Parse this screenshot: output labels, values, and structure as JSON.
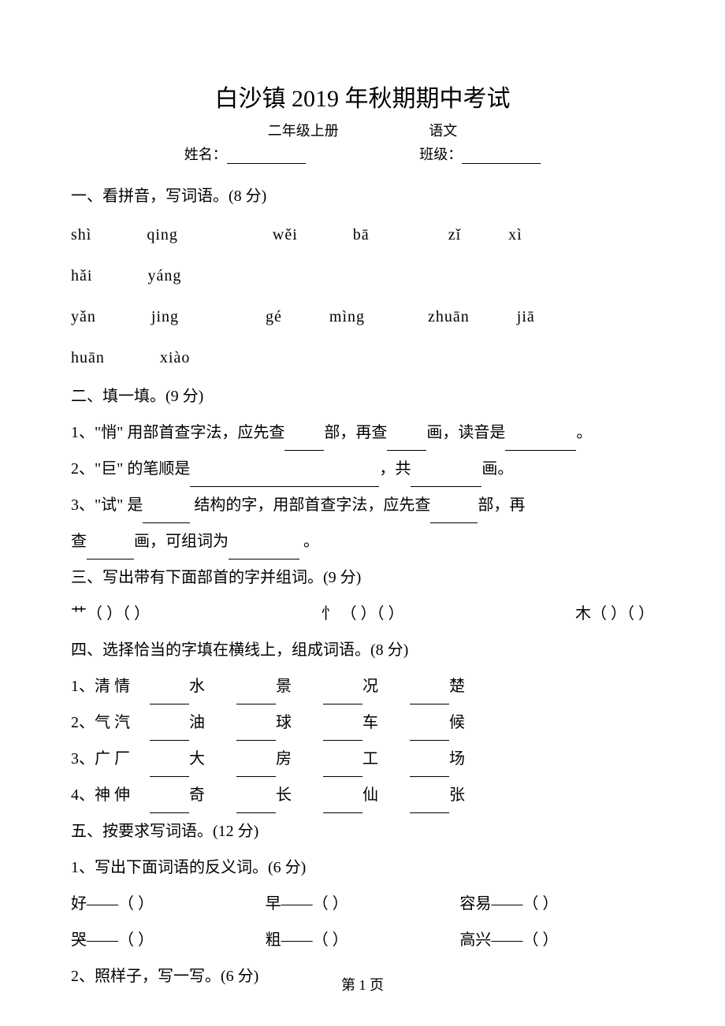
{
  "title": "白沙镇 2019 年秋期期中考试",
  "grade": "二年级上册",
  "subject": "语文",
  "name_label": "姓名：",
  "class_label": "班级：",
  "section1": {
    "heading": "一、看拼音，写词语。(8 分)",
    "row1": [
      {
        "text": "shì",
        "w": 70
      },
      {
        "text": "qing",
        "w": 120
      },
      {
        "text": "wěi",
        "w": 70
      },
      {
        "text": "bā",
        "w": 100
      },
      {
        "text": "zǐ",
        "w": 60
      },
      {
        "text": "xì",
        "w": 130
      },
      {
        "text": "hǎi",
        "w": 70
      },
      {
        "text": "yáng",
        "w": 0
      }
    ],
    "row2": [
      {
        "text": "yǎn",
        "w": 70
      },
      {
        "text": "jing",
        "w": 110
      },
      {
        "text": "gé",
        "w": 60
      },
      {
        "text": "mìng",
        "w": 80
      },
      {
        "text": "zhuān",
        "w": 60
      },
      {
        "text": "jiā",
        "w": 90
      },
      {
        "text": "huān",
        "w": 70
      },
      {
        "text": "xiào",
        "w": 0
      }
    ]
  },
  "section2": {
    "heading": "二、填一填。(9 分)",
    "q1_a": "1、\"悄\" 用部首查字法，应先查",
    "q1_b": "部，再查",
    "q1_c": "画，读音是",
    "q1_d": "。",
    "q2_a": "2、\"巨\" 的笔顺是",
    "q2_b": "，共",
    "q2_c": "画。",
    "q3_a": "3、\"试\" 是",
    "q3_b": " 结构的字，用部首查字法，应先查",
    "q3_c": "部，再",
    "q3_d": "查",
    "q3_e": "画，可组词为",
    "q3_f": " 。"
  },
  "section3": {
    "heading": "三、写出带有下面部首的字并组词。(9 分)",
    "r1": "艹",
    "r2": "忄",
    "r3": "木"
  },
  "section4": {
    "heading": "四、选择恰当的字填在横线上，组成词语。(8 分)",
    "rows": [
      {
        "num": "1、",
        "chars": "清   情",
        "words": [
          "水",
          "景",
          "况",
          "楚"
        ]
      },
      {
        "num": "2、",
        "chars": "气   汽",
        "words": [
          "油",
          "球",
          "车",
          "候"
        ]
      },
      {
        "num": "3、",
        "chars": "广   厂",
        "words": [
          "大",
          "房",
          "工",
          "场"
        ]
      },
      {
        "num": "4、",
        "chars": "神   伸",
        "words": [
          "奇",
          "长",
          "仙",
          "张"
        ]
      }
    ]
  },
  "section5": {
    "heading": "五、按要求写词语。(12 分)",
    "sub1": "1、写出下面词语的反义词。(6 分)",
    "ant_row1": [
      "好——（        ）",
      "早——（        ）",
      "容易——（        ）"
    ],
    "ant_row2": [
      "哭——（        ）",
      "粗——（        ）",
      "高兴——（        ）"
    ],
    "sub2": "2、照样子，写一写。(6 分)"
  },
  "page_number": "第 1 页"
}
